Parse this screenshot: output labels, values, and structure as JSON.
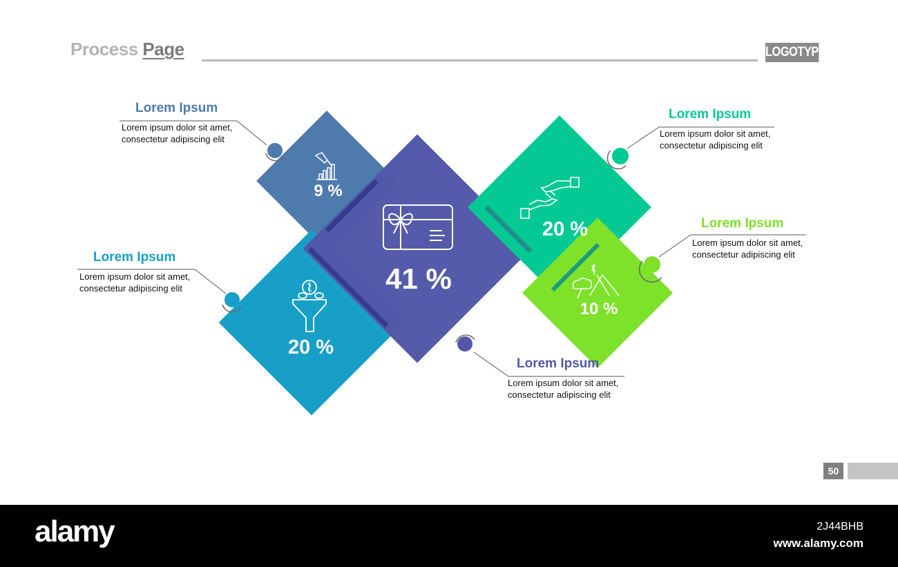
{
  "header": {
    "title_part1": "Process",
    "title_part2": "Page",
    "logo": "LOGOTYPE"
  },
  "segments": [
    {
      "id": "top-left",
      "percent": "9 %",
      "heading": "Lorem Ipsum",
      "line1": "Lorem ipsum dolor sit amet,",
      "line2": "consectetur adipiscing elit",
      "color": "#4f7aad",
      "icon": "growth-chart-icon"
    },
    {
      "id": "center",
      "percent": "41 %",
      "heading": "Lorem Ipsum",
      "line1": "Lorem ipsum dolor sit amet,",
      "line2": "consectetur adipiscing elit",
      "color": "#5258a8",
      "icon": "gift-card-icon"
    },
    {
      "id": "bottom-left",
      "percent": "20 %",
      "heading": "Lorem Ipsum",
      "line1": "Lorem ipsum dolor sit amet,",
      "line2": "consectetur adipiscing elit",
      "color": "#189fc8",
      "icon": "money-funnel-icon"
    },
    {
      "id": "top-right",
      "percent": "20 %",
      "heading": "Lorem Ipsum",
      "line1": "Lorem ipsum dolor sit amet,",
      "line2": "consectetur adipiscing elit",
      "color": "#05c994",
      "icon": "handshake-money-icon"
    },
    {
      "id": "bottom-right",
      "percent": "10 %",
      "heading": "Lorem Ipsum",
      "line1": "Lorem ipsum dolor sit amet,",
      "line2": "consectetur adipiscing elit",
      "color": "#7ee12a",
      "icon": "mountain-goal-icon"
    }
  ],
  "page_number": "50",
  "footer": {
    "brand": "alamy",
    "image_id": "2J44BHB",
    "url": "www.alamy.com"
  }
}
